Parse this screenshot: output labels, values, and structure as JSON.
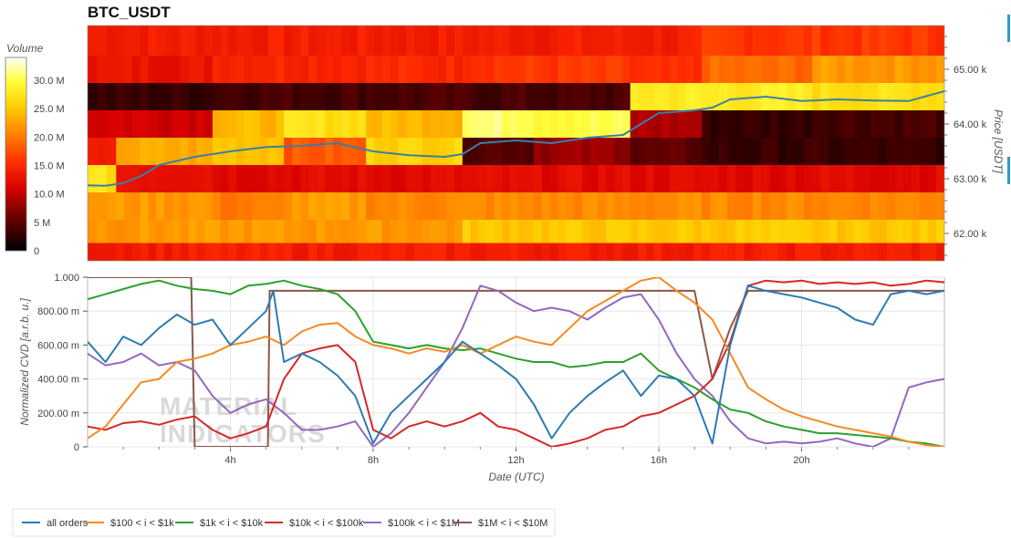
{
  "title": "BTC_USDT",
  "watermark": {
    "line1": "MATERIAL",
    "line2": "INDICATORS"
  },
  "colorbar": {
    "label": "Volume",
    "ticks": [
      "0",
      "5 M",
      "10.0 M",
      "15.0 M",
      "20.0 M",
      "25.0 M",
      "30.0 M"
    ],
    "min": 0,
    "max": 34
  },
  "price_axis": {
    "label": "Price [USDT]",
    "ticks": [
      "62.00 k",
      "63.00 k",
      "64.00 k",
      "65.00 k"
    ],
    "values": [
      62000,
      63000,
      64000,
      65000
    ],
    "ylim": [
      61500,
      65800
    ]
  },
  "cvd_axis": {
    "label": "Normalized CVD [a.r.b. u.]",
    "ticks": [
      "0",
      "200.00 m",
      "400.00 m",
      "600.00 m",
      "800.00 m",
      "1.000"
    ],
    "values": [
      0,
      0.2,
      0.4,
      0.6,
      0.8,
      1.0
    ],
    "ylim": [
      0,
      1.0
    ]
  },
  "x_axis": {
    "label": "Date (UTC)",
    "ticks": [
      "4h",
      "8h",
      "12h",
      "16h",
      "20h"
    ],
    "values": [
      4,
      8,
      12,
      16,
      20
    ],
    "xlim": [
      0,
      24
    ]
  },
  "legend": [
    {
      "name": "all orders",
      "color": "#2c7bb0"
    },
    {
      "name": "$100 < i < $1k",
      "color": "#f5891f"
    },
    {
      "name": "$1k < i < $10k",
      "color": "#2ca02c"
    },
    {
      "name": "$10k < i < $100k",
      "color": "#d62728"
    },
    {
      "name": "$100k < i < $1M",
      "color": "#9467bd"
    },
    {
      "name": "$1M < i < $10M",
      "color": "#8c564b"
    }
  ],
  "chart_data": [
    {
      "type": "heatmap",
      "title": "BTC_USDT",
      "ylabel": "Price [USDT]",
      "colorbar_label": "Volume",
      "price_rows": [
        65500,
        65000,
        64500,
        64000,
        63500,
        63000,
        62500,
        62000,
        61650
      ],
      "time_segments_h": [
        0,
        0.8,
        3.5,
        5.5,
        7.8,
        10.5,
        12.5,
        15.2,
        17.2,
        20.3,
        24
      ],
      "volume_M": [
        [
          14,
          14,
          14,
          14,
          14,
          14,
          14,
          14,
          16,
          16
        ],
        [
          13,
          13,
          15,
          15,
          15,
          16,
          16,
          15,
          19,
          22
        ],
        [
          3,
          3,
          4,
          4,
          4,
          4,
          4,
          28,
          28,
          27
        ],
        [
          11,
          11,
          24,
          27,
          24,
          31,
          30,
          9,
          3,
          4
        ],
        [
          13,
          23,
          25,
          18,
          26,
          5,
          8,
          5,
          3,
          3
        ],
        [
          27,
          13,
          12,
          12,
          12,
          12,
          12,
          12,
          12,
          12
        ],
        [
          22,
          22,
          20,
          22,
          21,
          21,
          21,
          21,
          21,
          21
        ],
        [
          22,
          22,
          22,
          22,
          22,
          25,
          25,
          25,
          25,
          25
        ],
        [
          14,
          14,
          14,
          14,
          14,
          14,
          14,
          14,
          14,
          14
        ]
      ],
      "price_line": {
        "x": [
          0,
          0.5,
          1,
          1.5,
          2,
          3,
          4,
          5,
          6,
          7,
          8,
          9,
          10,
          10.5,
          11,
          12,
          13,
          13.5,
          14,
          15,
          15.5,
          16,
          17,
          17.5,
          18,
          19,
          20,
          21,
          22,
          23,
          24
        ],
        "y": [
          62880,
          62870,
          62920,
          63050,
          63250,
          63400,
          63500,
          63580,
          63600,
          63650,
          63500,
          63430,
          63400,
          63450,
          63650,
          63700,
          63650,
          63700,
          63750,
          63800,
          64000,
          64200,
          64250,
          64300,
          64450,
          64500,
          64420,
          64450,
          64430,
          64420,
          64600
        ]
      }
    },
    {
      "type": "line",
      "xlabel": "Date (UTC)",
      "ylabel": "Normalized CVD [a.r.b. u.]",
      "ylim": [
        0,
        1.0
      ],
      "series": [
        {
          "name": "all orders",
          "x": [
            0,
            0.5,
            1,
            1.5,
            2,
            2.5,
            3,
            3.5,
            4,
            4.5,
            5,
            5.2,
            5.5,
            6,
            6.5,
            7,
            7.5,
            8,
            8.5,
            9,
            9.5,
            10,
            10.5,
            11,
            11.5,
            12,
            12.5,
            13,
            13.5,
            14,
            14.5,
            15,
            15.5,
            16,
            16.5,
            17,
            17.5,
            18,
            18.5,
            19,
            19.5,
            20,
            20.5,
            21,
            21.5,
            22,
            22.5,
            23,
            23.5,
            24
          ],
          "values": [
            0.62,
            0.5,
            0.65,
            0.6,
            0.7,
            0.78,
            0.72,
            0.75,
            0.6,
            0.7,
            0.8,
            0.92,
            0.5,
            0.55,
            0.5,
            0.42,
            0.3,
            0.02,
            0.2,
            0.3,
            0.4,
            0.5,
            0.62,
            0.55,
            0.48,
            0.4,
            0.25,
            0.05,
            0.2,
            0.3,
            0.38,
            0.45,
            0.3,
            0.42,
            0.4,
            0.3,
            0.02,
            0.6,
            0.95,
            0.92,
            0.9,
            0.88,
            0.85,
            0.82,
            0.75,
            0.72,
            0.9,
            0.92,
            0.9,
            0.92
          ]
        },
        {
          "name": "$100 < i < $1k",
          "x": [
            0,
            0.5,
            1,
            1.5,
            2,
            2.5,
            3,
            3.5,
            4,
            4.5,
            5,
            5.5,
            6,
            6.5,
            7,
            7.5,
            8,
            8.5,
            9,
            9.5,
            10,
            10.5,
            11,
            11.5,
            12,
            12.5,
            13,
            13.5,
            14,
            14.5,
            15,
            15.5,
            16,
            16.5,
            17,
            17.5,
            18,
            18.5,
            19,
            19.5,
            20,
            20.5,
            21,
            21.5,
            22,
            22.5,
            23,
            23.5,
            24
          ],
          "values": [
            0.05,
            0.12,
            0.25,
            0.38,
            0.4,
            0.5,
            0.52,
            0.55,
            0.6,
            0.62,
            0.65,
            0.6,
            0.68,
            0.72,
            0.73,
            0.65,
            0.6,
            0.58,
            0.55,
            0.58,
            0.56,
            0.6,
            0.55,
            0.6,
            0.65,
            0.62,
            0.6,
            0.7,
            0.8,
            0.86,
            0.92,
            0.98,
            1.0,
            0.92,
            0.85,
            0.75,
            0.55,
            0.35,
            0.28,
            0.22,
            0.18,
            0.15,
            0.12,
            0.1,
            0.08,
            0.06,
            0.03,
            0.01,
            0.0
          ]
        },
        {
          "name": "$1k < i < $10k",
          "x": [
            0,
            0.5,
            1,
            1.5,
            2,
            2.5,
            3,
            3.5,
            4,
            4.5,
            5,
            5.5,
            6,
            6.5,
            7,
            7.5,
            8,
            8.5,
            9,
            9.5,
            10,
            10.5,
            11,
            11.5,
            12,
            12.5,
            13,
            13.5,
            14,
            14.5,
            15,
            15.5,
            16,
            16.5,
            17,
            17.5,
            18,
            18.5,
            19,
            19.5,
            20,
            20.5,
            21,
            21.5,
            22,
            22.5,
            23,
            23.5,
            24
          ],
          "values": [
            0.87,
            0.9,
            0.93,
            0.96,
            0.98,
            0.95,
            0.93,
            0.92,
            0.9,
            0.95,
            0.96,
            0.98,
            0.95,
            0.93,
            0.9,
            0.8,
            0.62,
            0.6,
            0.58,
            0.6,
            0.58,
            0.57,
            0.58,
            0.55,
            0.52,
            0.5,
            0.5,
            0.47,
            0.48,
            0.5,
            0.5,
            0.55,
            0.45,
            0.4,
            0.35,
            0.28,
            0.22,
            0.2,
            0.15,
            0.12,
            0.1,
            0.08,
            0.08,
            0.07,
            0.06,
            0.05,
            0.03,
            0.02,
            0.0
          ]
        },
        {
          "name": "$10k < i < $100k",
          "x": [
            0,
            0.5,
            1,
            1.5,
            2,
            2.5,
            3,
            3.5,
            4,
            4.5,
            5,
            5.5,
            6,
            6.5,
            7,
            7.5,
            8,
            8.5,
            9,
            9.5,
            10,
            10.5,
            11,
            11.5,
            12,
            12.5,
            13,
            13.5,
            14,
            14.5,
            15,
            15.5,
            16,
            16.5,
            17,
            17.5,
            18,
            18.5,
            19,
            19.5,
            20,
            20.5,
            21,
            21.5,
            22,
            22.5,
            23,
            23.5,
            24
          ],
          "values": [
            0.12,
            0.1,
            0.14,
            0.15,
            0.13,
            0.16,
            0.18,
            0.1,
            0.05,
            0.08,
            0.12,
            0.4,
            0.55,
            0.58,
            0.6,
            0.5,
            0.1,
            0.05,
            0.12,
            0.15,
            0.12,
            0.15,
            0.2,
            0.12,
            0.1,
            0.05,
            0.0,
            0.02,
            0.05,
            0.1,
            0.12,
            0.18,
            0.2,
            0.25,
            0.3,
            0.4,
            0.62,
            0.95,
            0.98,
            0.97,
            0.98,
            0.96,
            0.97,
            0.96,
            0.97,
            0.95,
            0.96,
            0.98,
            0.97
          ]
        },
        {
          "name": "$100k < i < $1M",
          "x": [
            0,
            0.5,
            1,
            1.5,
            2,
            2.5,
            3,
            3.5,
            4,
            4.5,
            5,
            5.5,
            6,
            6.5,
            7,
            7.5,
            8,
            8.5,
            9,
            9.5,
            10,
            10.5,
            11,
            11.5,
            12,
            12.5,
            13,
            13.5,
            14,
            14.5,
            15,
            15.5,
            16,
            16.5,
            17,
            17.5,
            18,
            18.5,
            19,
            19.5,
            20,
            20.5,
            21,
            21.5,
            22,
            22.5,
            23,
            23.5,
            24
          ],
          "values": [
            0.55,
            0.48,
            0.5,
            0.55,
            0.48,
            0.5,
            0.45,
            0.3,
            0.2,
            0.25,
            0.28,
            0.2,
            0.1,
            0.1,
            0.12,
            0.15,
            0.0,
            0.08,
            0.2,
            0.35,
            0.5,
            0.7,
            0.95,
            0.92,
            0.85,
            0.8,
            0.82,
            0.8,
            0.75,
            0.82,
            0.88,
            0.9,
            0.75,
            0.55,
            0.4,
            0.3,
            0.15,
            0.05,
            0.02,
            0.03,
            0.02,
            0.03,
            0.05,
            0.02,
            0.0,
            0.05,
            0.35,
            0.38,
            0.4
          ]
        },
        {
          "name": "$1M < i < $10M",
          "x": [
            0,
            2.9,
            3.0,
            3.1,
            5.0,
            5.05,
            5.1,
            17.0,
            17.5,
            18.0,
            18.5,
            24
          ],
          "values": [
            1.0,
            1.0,
            0.0,
            0.0,
            0.0,
            0.0,
            0.92,
            0.92,
            0.4,
            0.7,
            0.92,
            0.92
          ]
        }
      ]
    }
  ]
}
